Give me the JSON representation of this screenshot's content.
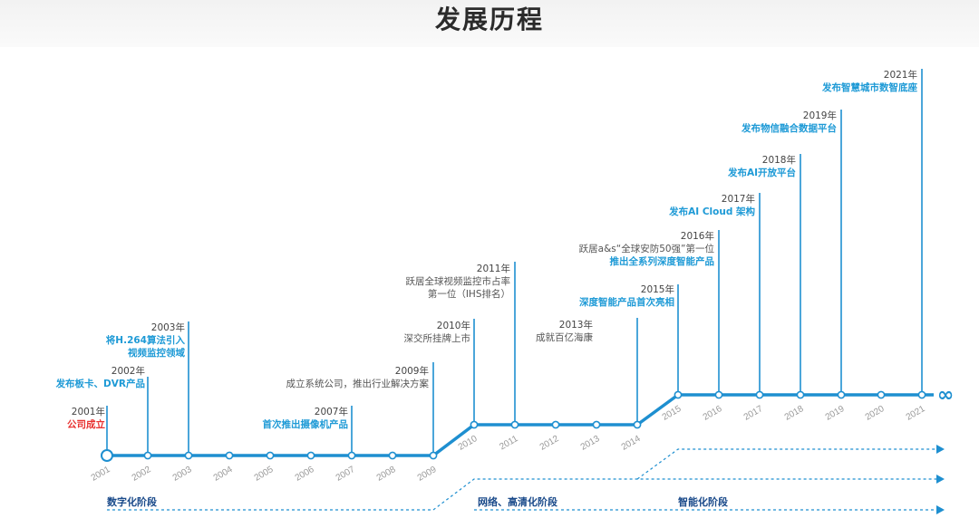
{
  "title": "发展历程",
  "timeline": {
    "years": [
      "2001",
      "2002",
      "2003",
      "2004",
      "2005",
      "2006",
      "2007",
      "2008",
      "2009",
      "2010",
      "2011",
      "2012",
      "2013",
      "2014",
      "2015",
      "2016",
      "2017",
      "2018",
      "2019",
      "2020",
      "2021"
    ],
    "end_symbol": "∞",
    "colors": {
      "line": "#1e8fd0",
      "text_blue": "#1e9ad6",
      "text_red": "#e8312f",
      "stage_text": "#1a4a8a"
    }
  },
  "milestones": [
    {
      "year": "2001年",
      "lines": [
        "公司成立"
      ],
      "style": "red"
    },
    {
      "year": "2002年",
      "lines": [
        "发布板卡、DVR产品"
      ],
      "style": "blue"
    },
    {
      "year": "2003年",
      "lines": [
        "将H.264算法引入",
        "视频监控领域"
      ],
      "style": "blue"
    },
    {
      "year": "2007年",
      "lines": [
        "首次推出摄像机产品"
      ],
      "style": "blue"
    },
    {
      "year": "2009年",
      "lines": [
        "成立系统公司，推出行业解决方案"
      ],
      "style": "gray"
    },
    {
      "year": "2010年",
      "lines": [
        "深交所挂牌上市"
      ],
      "style": "gray"
    },
    {
      "year": "2011年",
      "lines": [
        "跃居全球视频监控市占率",
        "第一位（IHS排名）"
      ],
      "style": "gray"
    },
    {
      "year": "2013年",
      "lines": [
        "成就百亿海康"
      ],
      "style": "gray"
    },
    {
      "year": "2015年",
      "lines": [
        "深度智能产品首次亮相"
      ],
      "style": "blue"
    },
    {
      "year": "2016年",
      "lines": [
        "跃居a&s“全球安防50强”第一位",
        "推出全系列深度智能产品"
      ],
      "style": "mixed"
    },
    {
      "year": "2017年",
      "lines": [
        "发布AI Cloud 架构"
      ],
      "style": "blue"
    },
    {
      "year": "2018年",
      "lines": [
        "发布AI开放平台"
      ],
      "style": "blue"
    },
    {
      "year": "2019年",
      "lines": [
        "发布物信融合数据平台"
      ],
      "style": "blue"
    },
    {
      "year": "2021年",
      "lines": [
        "发布智慧城市数智底座"
      ],
      "style": "blue"
    }
  ],
  "stages": [
    "数字化阶段",
    "网络、高清化阶段",
    "智能化阶段"
  ]
}
